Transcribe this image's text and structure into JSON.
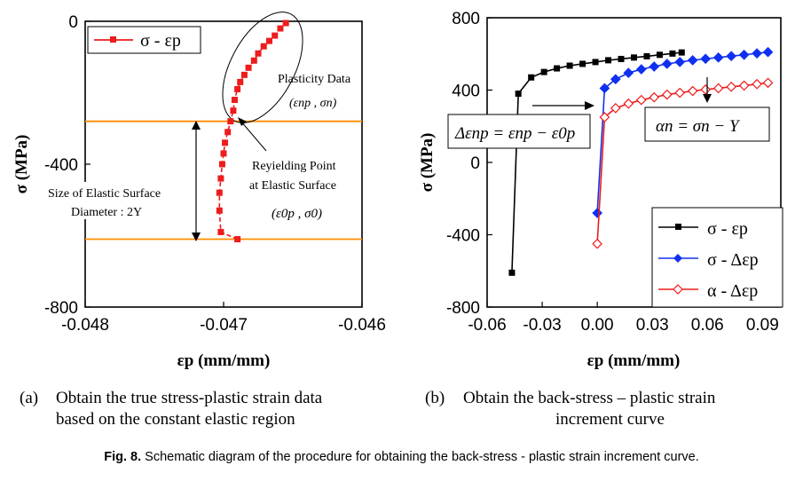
{
  "chart_data": [
    {
      "type": "scatter",
      "panel_id": "a",
      "xlabel": "εp (mm/mm)",
      "ylabel": "σ (MPa)",
      "xlim": [
        -0.048,
        -0.046
      ],
      "ylim": [
        -800,
        0
      ],
      "xticks": [
        -0.048,
        -0.047,
        -0.046
      ],
      "xtick_labels": [
        "-0.048",
        "-0.047",
        "-0.046"
      ],
      "yticks": [
        -800,
        -400,
        0
      ],
      "ytick_labels": [
        "-800",
        "-400",
        "0"
      ],
      "legend": {
        "position": "top-left",
        "entries": [
          "σ - εp"
        ]
      },
      "series": [
        {
          "name": "σ - εp",
          "color": "#ee1c1c",
          "marker": "square",
          "x": [
            -0.0469,
            -0.04702,
            -0.04703,
            -0.04703,
            -0.04702,
            -0.04701,
            -0.047,
            -0.04699,
            -0.04697,
            -0.04695,
            -0.04693,
            -0.04692,
            -0.0469,
            -0.04688,
            -0.04685,
            -0.04682,
            -0.04678,
            -0.04675,
            -0.04671,
            -0.04667,
            -0.04663,
            -0.04659,
            -0.04655
          ],
          "y": [
            -610,
            -590,
            -530,
            -480,
            -440,
            -400,
            -370,
            -340,
            -310,
            -280,
            -250,
            -220,
            -190,
            -170,
            -150,
            -130,
            -110,
            -90,
            -70,
            -55,
            -40,
            -20,
            -5
          ]
        }
      ],
      "hlines": [
        {
          "y": -280,
          "color": "#ff8c00"
        },
        {
          "y": -610,
          "color": "#ff8c00"
        }
      ],
      "annotations": {
        "plasticity_title": "Plasticity Data",
        "plasticity_formula": "(εnp , σn)",
        "reyield_line1": "Reyielding Point",
        "reyield_line2": "at Elastic Surface",
        "reyield_formula": "(ε0p , σ0)",
        "elastic_line1": "Size of Elastic Surface",
        "elastic_line2": "Diameter : 2Y"
      }
    },
    {
      "type": "line",
      "panel_id": "b",
      "xlabel": "εp (mm/mm)",
      "ylabel": "σ (MPa)",
      "xlim": [
        -0.06,
        0.1
      ],
      "ylim": [
        -800,
        800
      ],
      "xticks": [
        -0.06,
        -0.03,
        0.0,
        0.03,
        0.06,
        0.09
      ],
      "xtick_labels": [
        "-0.06",
        "-0.03",
        "0.00",
        "0.03",
        "0.06",
        "0.09"
      ],
      "yticks": [
        -800,
        -400,
        0,
        400,
        800
      ],
      "ytick_labels": [
        "-800",
        "-400",
        "0",
        "400",
        "800"
      ],
      "legend": {
        "position": "bottom-right",
        "entries": [
          "σ - εp",
          "σ - Δεp",
          "α - Δεp"
        ]
      },
      "series": [
        {
          "name": "σ - εp",
          "color": "#000000",
          "marker": "square",
          "x": [
            -0.0465,
            -0.043,
            -0.036,
            -0.029,
            -0.022,
            -0.015,
            -0.008,
            -0.001,
            0.006,
            0.013,
            0.02,
            0.027,
            0.034,
            0.041,
            0.046
          ],
          "y": [
            -610,
            380,
            470,
            500,
            520,
            535,
            545,
            555,
            565,
            572,
            580,
            587,
            595,
            602,
            608
          ]
        },
        {
          "name": "σ - Δεp",
          "color": "#1030f0",
          "marker": "diamond",
          "x": [
            0.0,
            0.004,
            0.01,
            0.017,
            0.024,
            0.031,
            0.038,
            0.045,
            0.052,
            0.059,
            0.066,
            0.073,
            0.08,
            0.087,
            0.093
          ],
          "y": [
            -280,
            410,
            460,
            495,
            515,
            530,
            545,
            555,
            565,
            573,
            580,
            588,
            595,
            603,
            610
          ]
        },
        {
          "name": "α - Δεp",
          "color": "#ee1c1c",
          "marker": "open-diamond",
          "x": [
            0.0,
            0.004,
            0.01,
            0.017,
            0.024,
            0.031,
            0.038,
            0.045,
            0.052,
            0.059,
            0.066,
            0.073,
            0.08,
            0.087,
            0.093
          ],
          "y": [
            -450,
            250,
            300,
            325,
            345,
            360,
            375,
            385,
            395,
            403,
            410,
            418,
            425,
            433,
            440
          ]
        }
      ],
      "annotations": {
        "delta_formula": "Δεnp = εnp − ε0p",
        "alpha_formula": "αn = σn − Y"
      }
    }
  ],
  "captions": {
    "a_label": "(a)",
    "a_line1": "Obtain the true stress-plastic strain data",
    "a_line2": "based on the constant elastic region",
    "b_label": "(b)",
    "b_line1": "Obtain the back-stress – plastic strain",
    "b_line2": "increment curve",
    "fig_label": "Fig. 8.",
    "fig_text": "Schematic diagram of the procedure for obtaining the back-stress - plastic strain increment curve."
  }
}
